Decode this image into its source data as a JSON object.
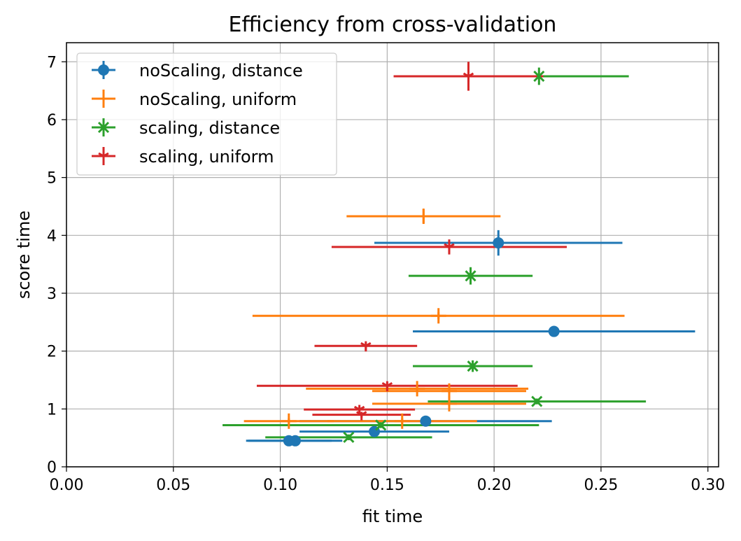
{
  "chart_data": {
    "type": "scatter",
    "title": "Efficiency from cross-validation",
    "xlabel": "fit time",
    "ylabel": "score time",
    "xlim": [
      0.0,
      0.305
    ],
    "ylim": [
      0,
      7.33
    ],
    "xticks": [
      0.0,
      0.05,
      0.1,
      0.15,
      0.2,
      0.25,
      0.3
    ],
    "xtick_labels": [
      "0.00",
      "0.05",
      "0.10",
      "0.15",
      "0.20",
      "0.25",
      "0.30"
    ],
    "yticks": [
      0,
      1,
      2,
      3,
      4,
      5,
      6,
      7
    ],
    "ytick_labels": [
      "0",
      "1",
      "2",
      "3",
      "4",
      "5",
      "6",
      "7"
    ],
    "grid": true,
    "legend_position": "top-left",
    "series": [
      {
        "name": "noScaling, distance",
        "color": "#1f77b4",
        "marker": "circle",
        "points": [
          {
            "x": 0.202,
            "y": 3.87,
            "xerr": 0.058,
            "yerr": 0.22
          },
          {
            "x": 0.228,
            "y": 2.34,
            "xerr": 0.066,
            "yerr": 0.0
          },
          {
            "x": 0.168,
            "y": 0.79,
            "xerr": 0.059,
            "yerr": 0.0
          },
          {
            "x": 0.144,
            "y": 0.61,
            "xerr": 0.035,
            "yerr": 0.0
          },
          {
            "x": 0.107,
            "y": 0.45,
            "xerr": 0.022,
            "yerr": 0.0
          },
          {
            "x": 0.104,
            "y": 0.45,
            "xerr": 0.02,
            "yerr": 0.0
          }
        ]
      },
      {
        "name": "noScaling, uniform",
        "color": "#ff7f0e",
        "marker": "plus",
        "points": [
          {
            "x": 0.167,
            "y": 4.33,
            "xerr": 0.036,
            "yerr": 0.12
          },
          {
            "x": 0.174,
            "y": 2.61,
            "xerr": 0.087,
            "yerr": 0.06
          },
          {
            "x": 0.164,
            "y": 1.35,
            "xerr": 0.052,
            "yerr": 0.05
          },
          {
            "x": 0.179,
            "y": 1.31,
            "xerr": 0.036,
            "yerr": 0.05
          },
          {
            "x": 0.179,
            "y": 1.09,
            "xerr": 0.036,
            "yerr": 0.05
          },
          {
            "x": 0.104,
            "y": 0.79,
            "xerr": 0.021,
            "yerr": 0.05
          },
          {
            "x": 0.157,
            "y": 0.79,
            "xerr": 0.035,
            "yerr": 0.05
          }
        ]
      },
      {
        "name": "scaling, distance",
        "color": "#2ca02c",
        "marker": "x",
        "points": [
          {
            "x": 0.221,
            "y": 6.75,
            "xerr": 0.042,
            "yerr": 0.15
          },
          {
            "x": 0.189,
            "y": 3.3,
            "xerr": 0.029,
            "yerr": 0.15
          },
          {
            "x": 0.19,
            "y": 1.74,
            "xerr": 0.028,
            "yerr": 0.1
          },
          {
            "x": 0.22,
            "y": 1.13,
            "xerr": 0.051,
            "yerr": 0.05
          },
          {
            "x": 0.147,
            "y": 0.72,
            "xerr": 0.074,
            "yerr": 0.05
          },
          {
            "x": 0.132,
            "y": 0.51,
            "xerr": 0.039,
            "yerr": 0.05
          }
        ]
      },
      {
        "name": "scaling, uniform",
        "color": "#d62728",
        "marker": "tri_down",
        "points": [
          {
            "x": 0.188,
            "y": 6.75,
            "xerr": 0.035,
            "yerr": 0.25
          },
          {
            "x": 0.179,
            "y": 3.8,
            "xerr": 0.055,
            "yerr": 0.13
          },
          {
            "x": 0.14,
            "y": 2.09,
            "xerr": 0.024,
            "yerr": 0.08
          },
          {
            "x": 0.15,
            "y": 1.4,
            "xerr": 0.061,
            "yerr": 0.08
          },
          {
            "x": 0.137,
            "y": 0.99,
            "xerr": 0.026,
            "yerr": 0.08
          },
          {
            "x": 0.138,
            "y": 0.9,
            "xerr": 0.023,
            "yerr": 0.05
          }
        ]
      }
    ]
  }
}
